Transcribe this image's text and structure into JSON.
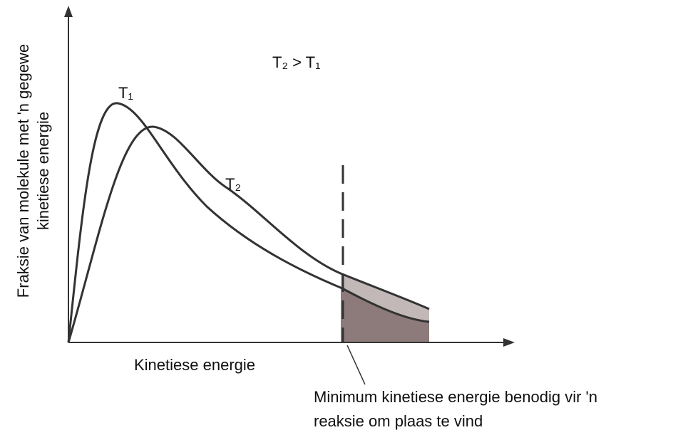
{
  "y_axis_label": [
    "Fraksie van molekule met 'n gegewe",
    "kinetiese energie"
  ],
  "x_axis_label": "Kinetiese energie",
  "comparison": "T₂ > T₁",
  "curves": [
    {
      "label": "T₁"
    },
    {
      "label": "T₂"
    }
  ],
  "annotation": [
    "Minimum kinetiese energie benodig vir 'n",
    "reaksie om plaas te vind"
  ]
}
